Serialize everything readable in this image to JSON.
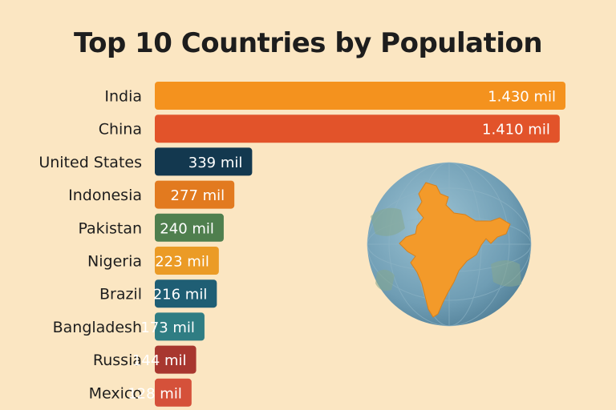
{
  "chart_data": {
    "type": "bar",
    "orientation": "horizontal",
    "title": "Top 10 Countries by Population",
    "categories": [
      "India",
      "China",
      "United States",
      "Indonesia",
      "Pakistan",
      "Nigeria",
      "Brazil",
      "Bangladesh",
      "Russia",
      "Mexico"
    ],
    "values": [
      1430,
      1410,
      339,
      277,
      240,
      223,
      216,
      173,
      144,
      128
    ],
    "value_labels": [
      "1.430 mil",
      "1.410 mil",
      "339 mil",
      "277 mil",
      "240 mil",
      "223 mil",
      "216 mil",
      "173 mil",
      "144 mil",
      "128 mil"
    ],
    "colors": [
      "#f4921e",
      "#e2532a",
      "#13384f",
      "#e27a1f",
      "#4f7f4e",
      "#eb9b26",
      "#1f5e74",
      "#2f7d83",
      "#a8372f",
      "#d5513a"
    ],
    "xlabel": "",
    "ylabel": "",
    "grid": false,
    "legend": "none"
  },
  "illustration": {
    "icon": "globe-with-india-map-icon",
    "ocean_color": "#6f9db4",
    "land_color": "#f39a2a"
  }
}
